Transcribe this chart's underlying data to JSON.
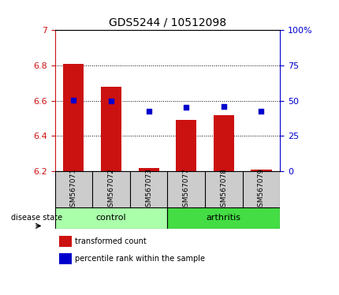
{
  "title": "GDS5244 / 10512098",
  "samples": [
    "GSM567071",
    "GSM567072",
    "GSM567073",
    "GSM567077",
    "GSM567078",
    "GSM567079"
  ],
  "bar_values": [
    6.81,
    6.68,
    6.22,
    6.49,
    6.52,
    6.21
  ],
  "dot_values_left_scale": [
    6.602,
    6.597,
    6.54,
    6.562,
    6.568,
    6.542
  ],
  "bar_bottom": 6.2,
  "ylim_left": [
    6.2,
    7.0
  ],
  "ylim_right": [
    0,
    100
  ],
  "yticks_left": [
    6.2,
    6.4,
    6.6,
    6.8,
    7.0
  ],
  "ytick_labels_left": [
    "6.2",
    "6.4",
    "6.6",
    "6.8",
    "7"
  ],
  "yticks_right": [
    0,
    25,
    50,
    75,
    100
  ],
  "ytick_labels_right": [
    "0",
    "25",
    "50",
    "75",
    "100%"
  ],
  "bar_color": "#cc1111",
  "dot_color": "#0000cc",
  "grid_color": "#000000",
  "control_color": "#aaffaa",
  "arthritis_color": "#44dd44",
  "tick_label_color_left": "#cc1111",
  "tick_label_color_right": "#0000cc",
  "disease_state_label": "disease state",
  "control_label": "control",
  "arthritis_label": "arthritis",
  "legend_bar_label": "transformed count",
  "legend_dot_label": "percentile rank within the sample",
  "bar_width": 0.55,
  "sample_box_color": "#cccccc",
  "title_fontsize": 10,
  "tick_fontsize": 8,
  "label_fontsize": 8
}
